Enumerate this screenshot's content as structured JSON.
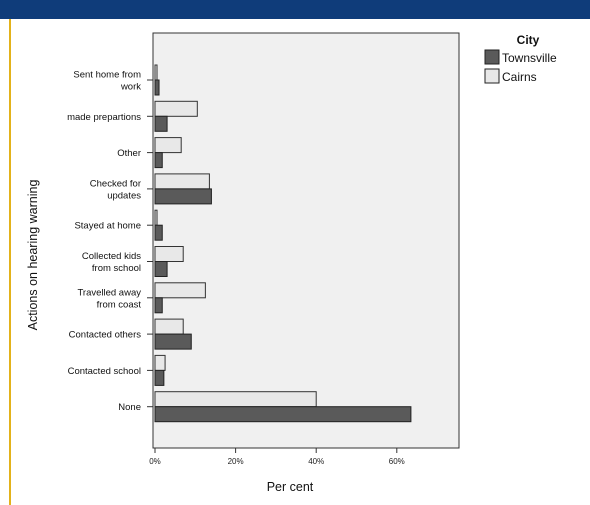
{
  "chart_data": {
    "type": "bar",
    "orientation": "horizontal",
    "xlabel": "Per cent",
    "ylabel": "Actions on hearing warning",
    "xlim": [
      0,
      75
    ],
    "xticks": [
      0,
      20,
      40,
      60
    ],
    "xtick_labels": [
      "0%",
      "20%",
      "40%",
      "60%"
    ],
    "legend_title": "City",
    "legend_position": "top-right",
    "categories": [
      [
        "Sent home from",
        "work"
      ],
      [
        "made prepartions"
      ],
      [
        "Other"
      ],
      [
        "Checked for",
        "updates"
      ],
      [
        "Stayed at home"
      ],
      [
        "Collected kids",
        "from school"
      ],
      [
        "Travelled away",
        "from coast"
      ],
      [
        "Contacted others"
      ],
      [
        "Contacted school"
      ],
      [
        "None"
      ]
    ],
    "series": [
      {
        "name": "Cairns",
        "color": "#e8e8e8",
        "values": [
          0.5,
          10.5,
          6.5,
          13.5,
          0.5,
          7,
          12.5,
          7,
          2.5,
          40
        ]
      },
      {
        "name": "Townsville",
        "color": "#5a5a5a",
        "values": [
          1,
          3,
          1.8,
          14,
          1.8,
          3,
          1.8,
          9,
          2.2,
          63.5
        ]
      }
    ]
  }
}
